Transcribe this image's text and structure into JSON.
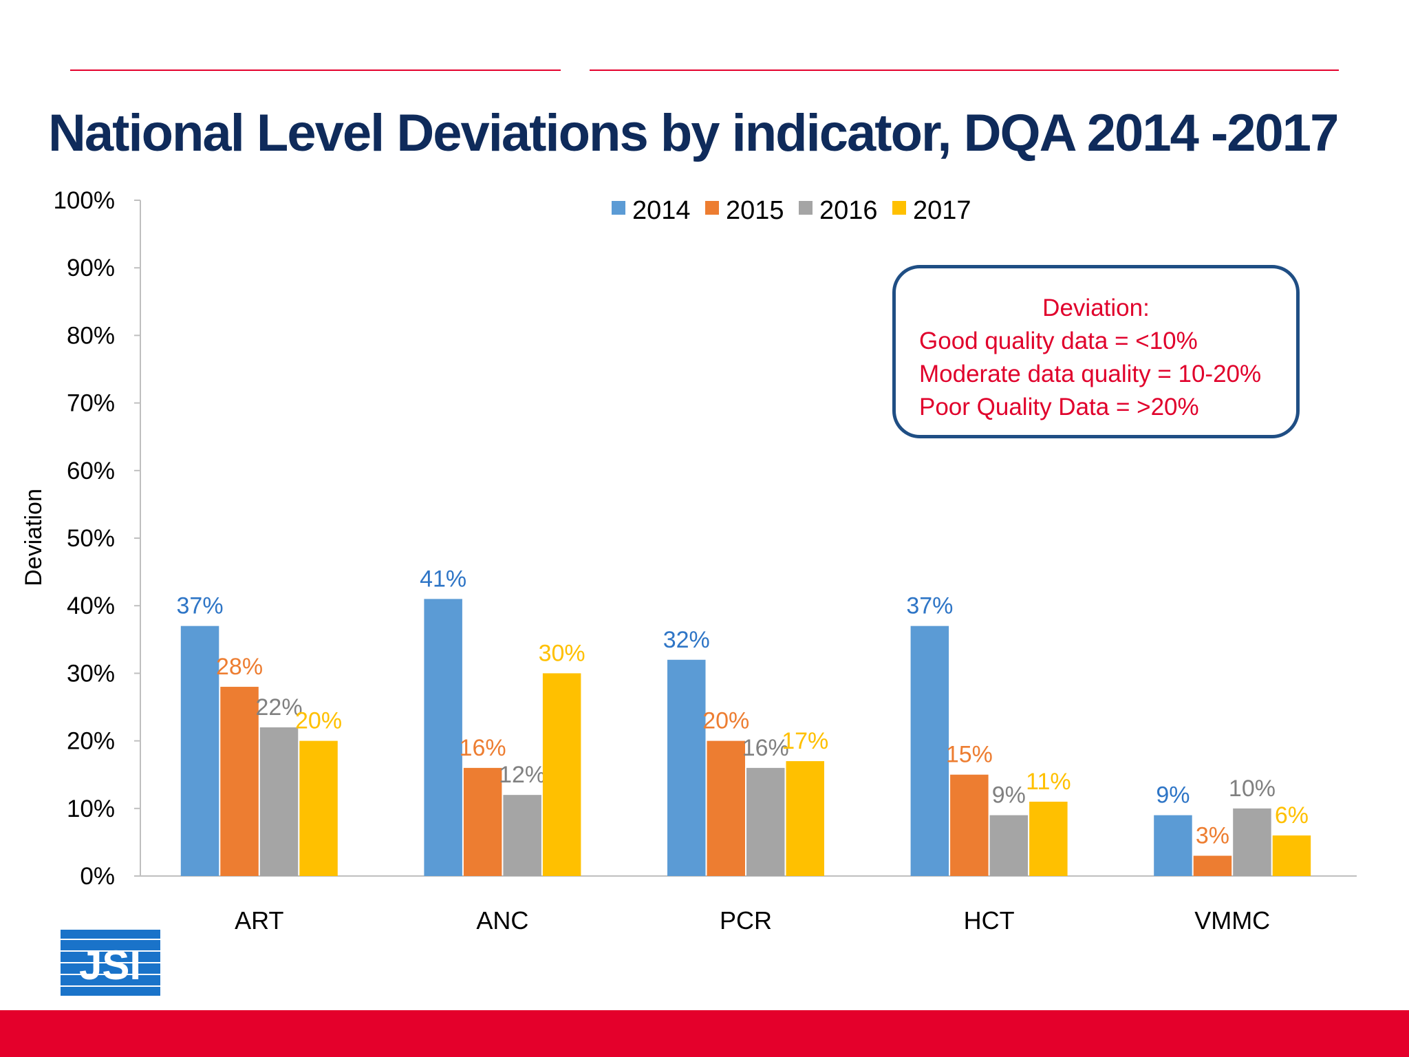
{
  "title": "National Level Deviations by indicator,  DQA 2014 -2017",
  "logo_text": "JSI",
  "note": {
    "heading": "Deviation:",
    "lines": [
      "Good quality data = <10%",
      "Moderate data quality = 10-20%",
      "Poor Quality Data = >20%"
    ]
  },
  "colors": {
    "accent_red": "#e4002b",
    "title_navy": "#0f2b5b",
    "box_border": "#1f4e84"
  },
  "chart_data": {
    "type": "bar",
    "title": "National Level Deviations by indicator,  DQA 2014 -2017",
    "xlabel": "",
    "ylabel": "Deviation",
    "ylim": [
      0,
      100
    ],
    "yticks": [
      "0%",
      "10%",
      "20%",
      "30%",
      "40%",
      "50%",
      "60%",
      "70%",
      "80%",
      "90%",
      "100%"
    ],
    "grid": false,
    "legend_placement": "top",
    "categories": [
      "ART",
      "ANC",
      "PCR",
      "HCT",
      "VMMC"
    ],
    "series": [
      {
        "name": "2014",
        "color": "#5b9bd5",
        "label_color": "#2e75c6",
        "values": [
          37,
          41,
          32,
          37,
          9
        ]
      },
      {
        "name": "2015",
        "color": "#ed7d31",
        "label_color": "#ed7d31",
        "values": [
          28,
          16,
          20,
          15,
          3
        ]
      },
      {
        "name": "2016",
        "color": "#a5a5a5",
        "label_color": "#808080",
        "values": [
          22,
          12,
          16,
          9,
          10
        ]
      },
      {
        "name": "2017",
        "color": "#ffc000",
        "label_color": "#ffc000",
        "values": [
          20,
          30,
          17,
          11,
          6
        ]
      }
    ]
  }
}
